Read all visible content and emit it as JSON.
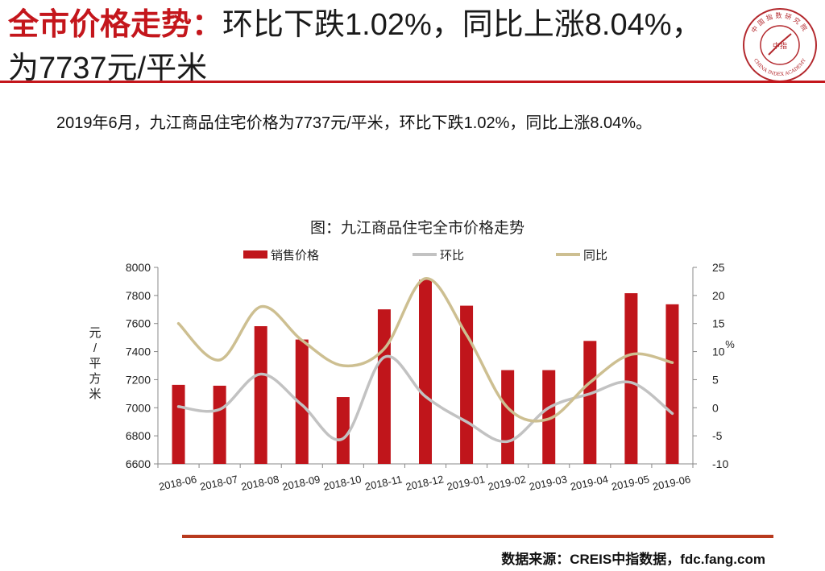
{
  "header": {
    "title_highlight": "全市价格走势：",
    "title_rest": "环比下跌1.02%，同比上涨8.04%，为7737元/平米"
  },
  "logo": {
    "text_cn": "中国指数研究院",
    "text_en": "CHINA INDEX ACADEMY",
    "center_text": "中指"
  },
  "summary": "2019年6月，九江商品住宅价格为7737元/平米，环比下跌1.02%，同比上涨8.04%。",
  "chart_data": {
    "type": "bar+line",
    "title": "图：九江商品住宅全市价格走势",
    "categories": [
      "2018-06",
      "2018-07",
      "2018-08",
      "2018-09",
      "2018-10",
      "2018-11",
      "2018-12",
      "2019-01",
      "2019-02",
      "2019-03",
      "2019-04",
      "2019-05",
      "2019-06"
    ],
    "series": [
      {
        "name": "销售价格",
        "type": "bar",
        "axis": "left",
        "color": "#c0151b",
        "values": [
          7163,
          7157,
          7581,
          7486,
          7076,
          7701,
          7912,
          7727,
          7268,
          7268,
          7476,
          7816,
          7737
        ]
      },
      {
        "name": "环比",
        "type": "line",
        "axis": "right",
        "color": "#c2c2c2",
        "values": [
          0.2,
          -0.3,
          6.0,
          0.5,
          -5.5,
          9.0,
          2.0,
          -2.5,
          -6.0,
          0.0,
          2.5,
          4.5,
          -1.02
        ]
      },
      {
        "name": "同比",
        "type": "line",
        "axis": "right",
        "color": "#cdbf91",
        "values": [
          15.0,
          8.5,
          18.0,
          12.0,
          7.5,
          10.5,
          23.0,
          13.0,
          0.0,
          -2.0,
          4.5,
          9.5,
          8.04
        ]
      }
    ],
    "ylabel": "元/平方米",
    "y2label": "%",
    "ylim": [
      6600,
      8000
    ],
    "yticks": [
      6600,
      6800,
      7000,
      7200,
      7400,
      7600,
      7800,
      8000
    ],
    "y2lim": [
      -10,
      25
    ],
    "y2ticks": [
      -10,
      -5,
      0,
      5,
      10,
      15,
      20,
      25
    ],
    "legend": "top",
    "grid": false
  },
  "source": "数据来源：CREIS中指数据，fdc.fang.com"
}
